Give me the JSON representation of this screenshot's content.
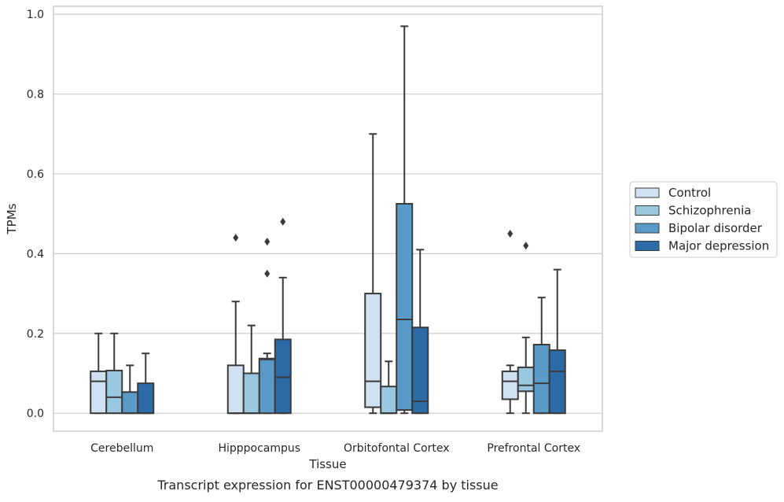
{
  "caption": "Transcript expression for ENST00000479374 by tissue",
  "chart_data": {
    "type": "boxplot",
    "xlabel": "Tissue",
    "ylabel": "TPMs",
    "ylim": [
      -0.045,
      1.02
    ],
    "yticks": [
      "0.0",
      "0.2",
      "0.4",
      "0.6",
      "0.8",
      "1.0"
    ],
    "ytick_values": [
      0,
      0.2,
      0.4,
      0.6,
      0.8,
      1.0
    ],
    "grid": true,
    "legend_position": "right",
    "categories": [
      "Cerebellum",
      "Hipppocampus",
      "Orbitofontal Cortex",
      "Prefrontal Cortex"
    ],
    "series": [
      {
        "name": "Control",
        "color": "#d0e1f2",
        "boxes": [
          {
            "q1": 0.0,
            "median": 0.08,
            "q3": 0.105,
            "whisker_low": 0.0,
            "whisker_high": 0.2,
            "outliers": []
          },
          {
            "q1": 0.0,
            "median": 0.0,
            "q3": 0.12,
            "whisker_low": 0.0,
            "whisker_high": 0.28,
            "outliers": [
              0.44
            ]
          },
          {
            "q1": 0.015,
            "median": 0.08,
            "q3": 0.3,
            "whisker_low": 0.0,
            "whisker_high": 0.7,
            "outliers": []
          },
          {
            "q1": 0.035,
            "median": 0.08,
            "q3": 0.105,
            "whisker_low": 0.0,
            "whisker_high": 0.12,
            "outliers": [
              0.45
            ]
          }
        ]
      },
      {
        "name": "Schizophrenia",
        "color": "#9ac8e0",
        "boxes": [
          {
            "q1": 0.0,
            "median": 0.04,
            "q3": 0.107,
            "whisker_low": 0.0,
            "whisker_high": 0.2,
            "outliers": []
          },
          {
            "q1": 0.0,
            "median": 0.0,
            "q3": 0.1,
            "whisker_low": 0.0,
            "whisker_high": 0.22,
            "outliers": []
          },
          {
            "q1": 0.0,
            "median": 0.0,
            "q3": 0.067,
            "whisker_low": 0.0,
            "whisker_high": 0.13,
            "outliers": []
          },
          {
            "q1": 0.055,
            "median": 0.07,
            "q3": 0.115,
            "whisker_low": 0.0,
            "whisker_high": 0.19,
            "outliers": [
              0.42
            ]
          }
        ]
      },
      {
        "name": "Bipolar disorder",
        "color": "#5a9ac9",
        "boxes": [
          {
            "q1": 0.0,
            "median": 0.0,
            "q3": 0.053,
            "whisker_low": 0.0,
            "whisker_high": 0.12,
            "outliers": []
          },
          {
            "q1": 0.0,
            "median": 0.135,
            "q3": 0.137,
            "whisker_low": 0.0,
            "whisker_high": 0.15,
            "outliers": [
              0.35,
              0.43
            ]
          },
          {
            "q1": 0.008,
            "median": 0.235,
            "q3": 0.525,
            "whisker_low": 0.0,
            "whisker_high": 0.97,
            "outliers": []
          },
          {
            "q1": 0.0,
            "median": 0.075,
            "q3": 0.172,
            "whisker_low": 0.0,
            "whisker_high": 0.29,
            "outliers": []
          }
        ]
      },
      {
        "name": "Major depression",
        "color": "#2d6ba8",
        "boxes": [
          {
            "q1": 0.0,
            "median": 0.0,
            "q3": 0.075,
            "whisker_low": 0.0,
            "whisker_high": 0.15,
            "outliers": []
          },
          {
            "q1": 0.0,
            "median": 0.09,
            "q3": 0.185,
            "whisker_low": 0.0,
            "whisker_high": 0.34,
            "outliers": [
              0.48
            ]
          },
          {
            "q1": 0.0,
            "median": 0.03,
            "q3": 0.215,
            "whisker_low": 0.0,
            "whisker_high": 0.41,
            "outliers": []
          },
          {
            "q1": 0.0,
            "median": 0.105,
            "q3": 0.158,
            "whisker_low": 0.0,
            "whisker_high": 0.36,
            "outliers": []
          }
        ]
      }
    ]
  }
}
